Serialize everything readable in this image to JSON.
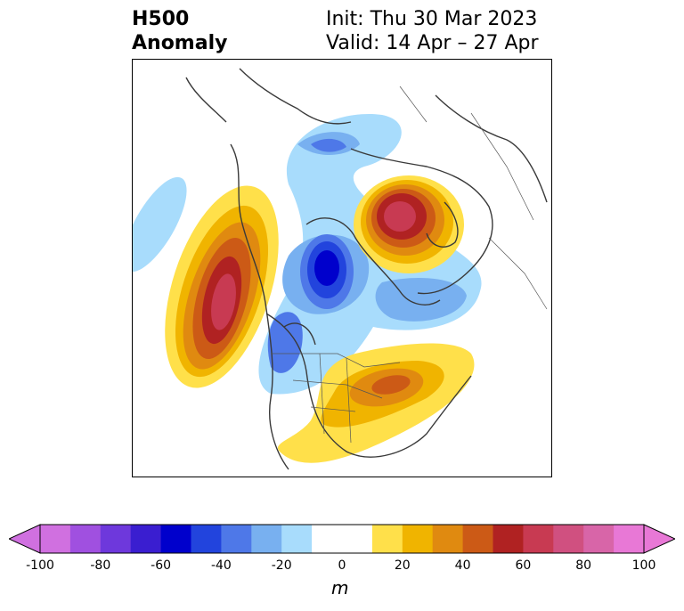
{
  "header": {
    "title_line1": "H500",
    "title_line2": "Anomaly",
    "init_text": "Init: Thu 30 Mar 2023",
    "valid_text": "Valid: 14 Apr – 27 Apr"
  },
  "colorbar": {
    "unit": "m",
    "ticks": [
      "-100",
      "-80",
      "-60",
      "-40",
      "-20",
      "0",
      "20",
      "40",
      "60",
      "80",
      "100"
    ],
    "colors": [
      "#d070e0",
      "#a050e0",
      "#6e38dc",
      "#3a1ed0",
      "#0000cc",
      "#2244dd",
      "#4e78e8",
      "#78b0f0",
      "#a8dcfc",
      "#ffffff",
      "#ffffff",
      "#ffe04a",
      "#f0b400",
      "#e08a10",
      "#cc5a16",
      "#b02222",
      "#c83a52",
      "#d05080",
      "#d865a8",
      "#e878d6"
    ],
    "under_color": "#d070e0",
    "over_color": "#e878d6"
  }
}
